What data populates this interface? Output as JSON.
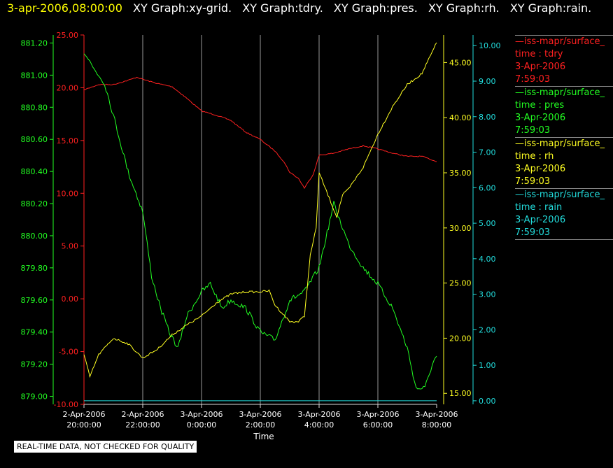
{
  "header": {
    "timestamp": "3-apr-2006,08:00:00",
    "graphs": [
      "XY Graph:xy-grid.",
      "XY Graph:tdry.",
      "XY Graph:pres.",
      "XY Graph:rh.",
      "XY Graph:rain."
    ]
  },
  "colors": {
    "tdry": "#ff2020",
    "pres": "#22ff22",
    "rh": "#ffff22",
    "rain": "#22dddd",
    "grid": "#999999",
    "axis": "#dddddd"
  },
  "legend": [
    {
      "source": "—iss-mapr/surface_",
      "var": "time : tdry",
      "date": "3-Apr-2006",
      "time": "7:59:03",
      "color": "#ff2020"
    },
    {
      "source": "—iss-mapr/surface_",
      "var": "time : pres",
      "date": "3-Apr-2006",
      "time": "7:59:03",
      "color": "#22ff22"
    },
    {
      "source": "—iss-mapr/surface_",
      "var": "time : rh",
      "date": "3-Apr-2006",
      "time": "7:59:03",
      "color": "#ffff22"
    },
    {
      "source": "—iss-mapr/surface_",
      "var": "time : rain",
      "date": "3-Apr-2006",
      "time": "7:59:03",
      "color": "#22dddd"
    }
  ],
  "quality_note": "REAL-TIME DATA, NOT CHECKED FOR QUALITY",
  "chart_data": {
    "type": "line",
    "xlabel": "Time",
    "xlim": [
      20.0,
      32.0
    ],
    "x_ticks": [
      {
        "value": 20,
        "date": "2-Apr-2006",
        "time": "20:00:00"
      },
      {
        "value": 22,
        "date": "2-Apr-2006",
        "time": "22:00:00"
      },
      {
        "value": 24,
        "date": "3-Apr-2006",
        "time": "0:00:00"
      },
      {
        "value": 26,
        "date": "3-Apr-2006",
        "time": "2:00:00"
      },
      {
        "value": 28,
        "date": "3-Apr-2006",
        "time": "4:00:00"
      },
      {
        "value": 30,
        "date": "3-Apr-2006",
        "time": "6:00:00"
      },
      {
        "value": 32,
        "date": "3-Apr-2006",
        "time": "8:00:00"
      }
    ],
    "grid": true,
    "axes": {
      "pres": {
        "range": [
          878.95,
          881.25
        ],
        "ticks": [
          "879.00",
          "879.20",
          "879.40",
          "879.60",
          "879.80",
          "880.00",
          "880.20",
          "880.40",
          "880.60",
          "880.80",
          "881.00",
          "881.20"
        ]
      },
      "tdry": {
        "range": [
          -10,
          25
        ],
        "ticks": [
          "-10.00",
          "-5.00",
          "0.00",
          "5.00",
          "10.00",
          "15.00",
          "20.00",
          "25.00"
        ]
      },
      "rh": {
        "range": [
          14,
          47.5
        ],
        "ticks": [
          "15.00",
          "20.00",
          "25.00",
          "30.00",
          "35.00",
          "40.00",
          "45.00"
        ]
      },
      "rain": {
        "range": [
          -0.1,
          10.3
        ],
        "ticks": [
          "0.00",
          "1.00",
          "2.00",
          "3.00",
          "4.00",
          "5.00",
          "6.00",
          "7.00",
          "8.00",
          "9.00",
          "10.00"
        ]
      }
    },
    "series": [
      {
        "key": "tdry",
        "x": [
          20.0,
          20.5,
          21.0,
          21.5,
          21.8,
          22.0,
          22.5,
          23.0,
          23.5,
          24.0,
          24.5,
          25.0,
          25.5,
          26.0,
          26.5,
          26.8,
          27.0,
          27.3,
          27.5,
          27.8,
          28.0,
          28.5,
          29.0,
          29.5,
          30.0,
          30.5,
          31.0,
          31.5,
          32.0
        ],
        "y": [
          19.8,
          20.3,
          20.3,
          20.7,
          21.0,
          20.8,
          20.4,
          20.1,
          19.0,
          17.8,
          17.4,
          16.9,
          15.8,
          15.1,
          14.0,
          13.0,
          12.0,
          11.4,
          10.5,
          11.8,
          13.6,
          13.8,
          14.2,
          14.5,
          14.2,
          13.8,
          13.5,
          13.5,
          13.0
        ]
      },
      {
        "key": "pres",
        "x": [
          20.0,
          20.3,
          20.7,
          21.0,
          21.5,
          22.0,
          22.3,
          22.6,
          22.9,
          23.2,
          23.5,
          24.0,
          24.3,
          24.7,
          25.0,
          25.5,
          26.0,
          26.5,
          27.0,
          27.5,
          28.0,
          28.5,
          28.7,
          29.0,
          29.5,
          30.0,
          30.5,
          31.0,
          31.3,
          31.6,
          31.85,
          32.0
        ],
        "y": [
          881.15,
          881.05,
          880.95,
          880.75,
          880.4,
          880.15,
          879.75,
          879.55,
          879.4,
          879.3,
          879.5,
          879.65,
          879.7,
          879.55,
          879.6,
          879.55,
          879.4,
          879.35,
          879.6,
          879.65,
          879.8,
          880.2,
          880.1,
          879.95,
          879.8,
          879.7,
          879.55,
          879.3,
          879.05,
          879.05,
          879.2,
          879.25
        ]
      },
      {
        "key": "rh",
        "x": [
          20.0,
          20.2,
          20.5,
          21.0,
          21.5,
          22.0,
          22.5,
          23.0,
          23.5,
          24.0,
          24.5,
          25.0,
          25.5,
          26.0,
          26.3,
          26.5,
          27.0,
          27.3,
          27.5,
          27.7,
          27.9,
          28.0,
          28.3,
          28.6,
          28.8,
          29.0,
          29.5,
          30.0,
          30.5,
          31.0,
          31.5,
          32.0
        ],
        "y": [
          18.5,
          16.5,
          18.5,
          20.0,
          19.5,
          18.2,
          19.0,
          20.3,
          21.2,
          22.0,
          23.2,
          24.0,
          24.2,
          24.2,
          24.3,
          23.0,
          21.5,
          21.5,
          22.0,
          27.5,
          30.0,
          35.0,
          33.0,
          31.0,
          33.0,
          33.5,
          35.5,
          38.5,
          41.0,
          43.0,
          44.0,
          46.8
        ]
      },
      {
        "key": "rain",
        "x": [
          20.0,
          32.0
        ],
        "y": [
          0.0,
          0.0
        ]
      }
    ]
  }
}
